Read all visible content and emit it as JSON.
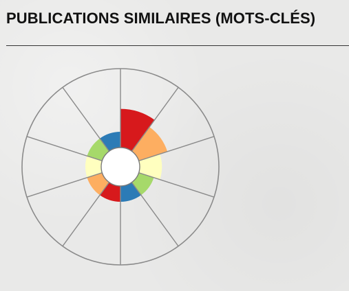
{
  "section": {
    "title": "PUBLICATIONS SIMILAIRES (MOTS-CLÉS)"
  },
  "chart_data": {
    "type": "pie",
    "sector_count": 10,
    "grid": true,
    "colors": {
      "sector_0": "#d7191c",
      "sector_1": "#fdae61",
      "sector_2": "#ffffbf",
      "sector_3": "#a6d96a",
      "sector_4": "#2c7bb6",
      "sector_5": "#d7191c",
      "sector_6": "#fdae61",
      "sector_7": "#ffffbf",
      "sector_8": "#a6d96a",
      "sector_9": "#2c7bb6"
    },
    "values": [
      0.49,
      0.38,
      0.28,
      0.2,
      0.2,
      0.2,
      0.2,
      0.2,
      0.2,
      0.2
    ]
  }
}
